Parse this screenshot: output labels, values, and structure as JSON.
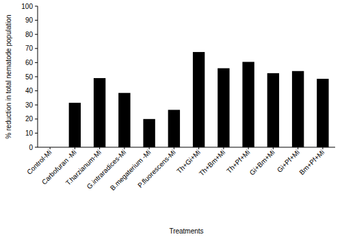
{
  "chart_data": {
    "type": "bar",
    "xlabel": "Treatments",
    "ylabel": "% reduction in total nematode population",
    "categories": [
      "Control-Mi",
      "Carbofuran -Mi",
      "T.harzianum-Mi",
      "G.intraradices-Mi",
      "B.megaterium -Mi",
      "P.fluorescens-Mi",
      "Th+Gi+Mi",
      "Th+Bm+Mi",
      "Th+Pf+Mi",
      "Gi+Bm+Mi",
      "Gi+Pf+Mi",
      "Bm+Pf+Mi"
    ],
    "values": [
      0,
      31.5,
      49,
      38.5,
      20,
      26.5,
      67.5,
      56,
      60.5,
      52.5,
      54,
      48.5
    ],
    "color": "#000000",
    "ylim": [
      0,
      100
    ],
    "yticks": [
      0,
      10,
      20,
      30,
      40,
      50,
      60,
      70,
      80,
      90,
      100
    ],
    "grid": false
  }
}
